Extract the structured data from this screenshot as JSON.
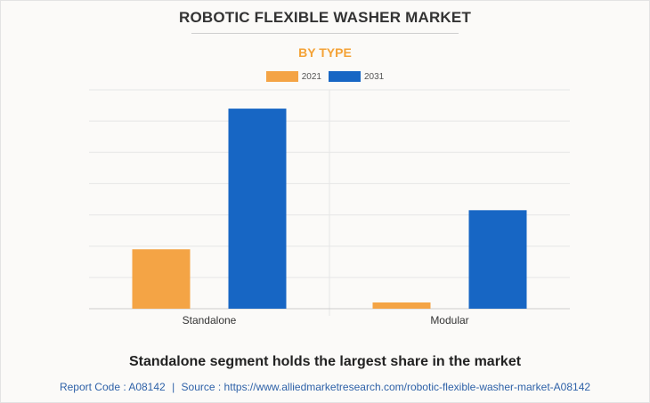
{
  "title": "ROBOTIC FLEXIBLE WASHER MARKET",
  "subtitle": "BY TYPE",
  "colors": {
    "subtitle": "#f4a236",
    "series_2021": "#f4a445",
    "series_2031": "#1766c4",
    "grid": "#e6e6e6",
    "axis": "#cccccc"
  },
  "chart_data": {
    "type": "bar",
    "categories": [
      "Standalone",
      "Modular"
    ],
    "series": [
      {
        "name": "2021",
        "values": [
          19,
          2
        ]
      },
      {
        "name": "2031",
        "values": [
          64,
          31.5
        ]
      }
    ],
    "ylim": [
      0,
      70
    ],
    "grid": true,
    "legend": "top-center",
    "xlabel": "",
    "ylabel": ""
  },
  "caption": "Standalone segment holds the largest share in the market",
  "source": {
    "report_code": "Report Code : A08142",
    "separator": "|",
    "source_text": "Source : https://www.alliedmarketresearch.com/robotic-flexible-washer-market-A08142"
  }
}
